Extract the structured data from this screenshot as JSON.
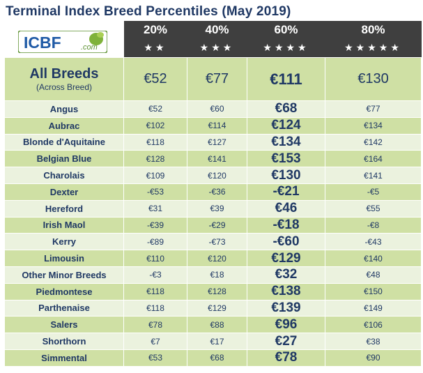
{
  "title": "Terminal Index Breed Percentiles (May 2019)",
  "logo": {
    "text": "ICBF",
    "sub": ".com"
  },
  "percentiles": [
    {
      "label": "20%",
      "stars": "★★"
    },
    {
      "label": "40%",
      "stars": "★★★"
    },
    {
      "label": "60%",
      "stars": "★★★★"
    },
    {
      "label": "80%",
      "stars": "★★★★★"
    }
  ],
  "all_breeds": {
    "name": "All Breeds",
    "sub": "(Across Breed)",
    "values": [
      "€52",
      "€77",
      "€111",
      "€130"
    ]
  },
  "rows": [
    {
      "breed": "Angus",
      "values": [
        "€52",
        "€60",
        "€68",
        "€77"
      ]
    },
    {
      "breed": "Aubrac",
      "values": [
        "€102",
        "€114",
        "€124",
        "€134"
      ]
    },
    {
      "breed": "Blonde d'Aquitaine",
      "values": [
        "€118",
        "€127",
        "€134",
        "€142"
      ]
    },
    {
      "breed": "Belgian Blue",
      "values": [
        "€128",
        "€141",
        "€153",
        "€164"
      ]
    },
    {
      "breed": "Charolais",
      "values": [
        "€109",
        "€120",
        "€130",
        "€141"
      ]
    },
    {
      "breed": "Dexter",
      "values": [
        "-€53",
        "-€36",
        "-€21",
        "-€5"
      ]
    },
    {
      "breed": "Hereford",
      "values": [
        "€31",
        "€39",
        "€46",
        "€55"
      ]
    },
    {
      "breed": "Irish Maol",
      "values": [
        "-€39",
        "-€29",
        "-€18",
        "-€8"
      ]
    },
    {
      "breed": "Kerry",
      "values": [
        "-€89",
        "-€73",
        "-€60",
        "-€43"
      ]
    },
    {
      "breed": "Limousin",
      "values": [
        "€110",
        "€120",
        "€129",
        "€140"
      ]
    },
    {
      "breed": "Other Minor Breeds",
      "values": [
        "-€3",
        "€18",
        "€32",
        "€48"
      ]
    },
    {
      "breed": "Piedmontese",
      "values": [
        "€118",
        "€128",
        "€138",
        "€150"
      ]
    },
    {
      "breed": "Parthenaise",
      "values": [
        "€118",
        "€129",
        "€139",
        "€149"
      ]
    },
    {
      "breed": "Salers",
      "values": [
        "€78",
        "€88",
        "€96",
        "€106"
      ]
    },
    {
      "breed": "Shorthorn",
      "values": [
        "€7",
        "€17",
        "€27",
        "€38"
      ]
    },
    {
      "breed": "Simmental",
      "values": [
        "€53",
        "€68",
        "€78",
        "€90"
      ]
    }
  ]
}
